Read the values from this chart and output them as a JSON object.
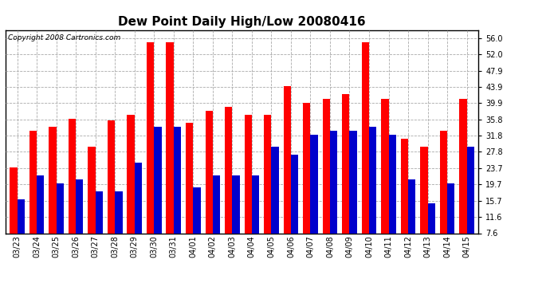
{
  "title": "Dew Point Daily High/Low 20080416",
  "copyright": "Copyright 2008 Cartronics.com",
  "categories": [
    "03/23",
    "03/24",
    "03/25",
    "03/26",
    "03/27",
    "03/28",
    "03/29",
    "03/30",
    "03/31",
    "04/01",
    "04/02",
    "04/03",
    "04/04",
    "04/05",
    "04/06",
    "04/07",
    "04/08",
    "04/09",
    "04/10",
    "04/11",
    "04/12",
    "04/13",
    "04/14",
    "04/15"
  ],
  "highs": [
    24.0,
    33.0,
    34.0,
    36.0,
    29.0,
    35.5,
    37.0,
    55.0,
    55.0,
    35.0,
    38.0,
    39.0,
    37.0,
    37.0,
    44.0,
    40.0,
    41.0,
    42.0,
    55.0,
    41.0,
    31.0,
    29.0,
    33.0,
    41.0
  ],
  "lows": [
    16.0,
    22.0,
    20.0,
    21.0,
    18.0,
    18.0,
    25.0,
    34.0,
    34.0,
    19.0,
    22.0,
    22.0,
    22.0,
    29.0,
    27.0,
    32.0,
    33.0,
    33.0,
    34.0,
    32.0,
    21.0,
    15.0,
    20.0,
    29.0
  ],
  "high_color": "#ff0000",
  "low_color": "#0000cc",
  "bg_color": "#ffffff",
  "grid_color": "#aaaaaa",
  "yticks": [
    7.6,
    11.6,
    15.7,
    19.7,
    23.7,
    27.8,
    31.8,
    35.8,
    39.9,
    43.9,
    47.9,
    52.0,
    56.0
  ],
  "ylim": [
    7.6,
    58.0
  ],
  "bar_width": 0.38,
  "figsize": [
    6.9,
    3.75
  ],
  "dpi": 100,
  "title_fontsize": 11,
  "tick_fontsize": 7,
  "copyright_fontsize": 6.5
}
